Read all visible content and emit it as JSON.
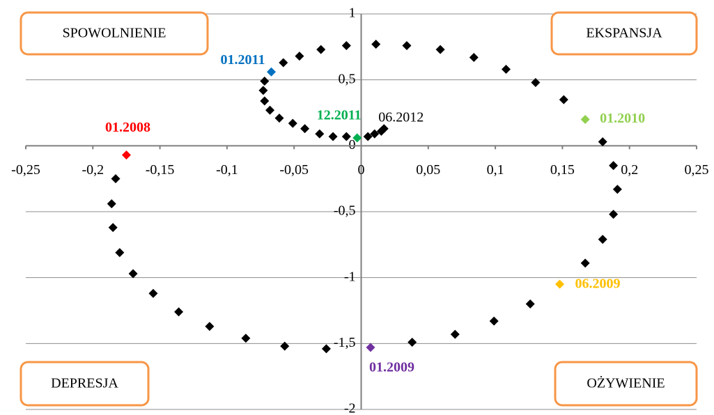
{
  "chart_data": {
    "type": "scatter",
    "xlim": [
      -0.25,
      0.25
    ],
    "xticks": [
      {
        "value": -0.25,
        "label": "-0,25"
      },
      {
        "value": -0.2,
        "label": "-0,2"
      },
      {
        "value": -0.15,
        "label": "-0,15"
      },
      {
        "value": -0.1,
        "label": "-0,1"
      },
      {
        "value": -0.05,
        "label": "-0,05"
      },
      0,
      {
        "value": 0.05,
        "label": "0,05"
      },
      {
        "value": 0.1,
        "label": "0,1"
      },
      {
        "value": 0.15,
        "label": "0,15"
      },
      {
        "value": 0.2,
        "label": "0,2"
      },
      {
        "value": 0.25,
        "label": "0,25"
      }
    ],
    "ylim": [
      -2,
      1
    ],
    "yticks": [
      -2,
      {
        "value": -1.5,
        "label": "-1,5"
      },
      -1,
      {
        "value": -0.5,
        "label": "-0,5"
      },
      0,
      {
        "value": 0.5,
        "label": "0,5"
      },
      1
    ],
    "grid": true,
    "quadrant_labels": [
      "SPOWOLNIENIE",
      "EKSPANSJA",
      "DEPRESJA",
      "OŻYWIENIE"
    ],
    "series": [
      {
        "color": "#000000",
        "x": [
          -0.183,
          -0.186,
          -0.185,
          -0.18,
          -0.17,
          -0.155,
          -0.136,
          -0.113,
          -0.086,
          -0.057,
          -0.026,
          0.038,
          0.07,
          0.099,
          0.126,
          0.167,
          0.18,
          0.188,
          0.191,
          0.188,
          0.18,
          0.151,
          0.13,
          0.108,
          0.084,
          0.059,
          0.034,
          0.011,
          -0.011,
          -0.03,
          -0.046,
          -0.058,
          -0.072,
          -0.073,
          -0.072,
          -0.068,
          -0.061,
          -0.051,
          -0.042,
          -0.031,
          -0.021,
          -0.011,
          0.005,
          0.01,
          0.015
        ],
        "y": [
          -0.25,
          -0.44,
          -0.62,
          -0.81,
          -0.97,
          -1.12,
          -1.26,
          -1.37,
          -1.46,
          -1.52,
          -1.54,
          -1.49,
          -1.43,
          -1.33,
          -1.2,
          -0.89,
          -0.71,
          -0.52,
          -0.33,
          -0.15,
          0.03,
          0.35,
          0.48,
          0.58,
          0.67,
          0.73,
          0.76,
          0.77,
          0.76,
          0.73,
          0.68,
          0.63,
          0.49,
          0.42,
          0.34,
          0.27,
          0.21,
          0.17,
          0.13,
          0.09,
          0.07,
          0.07,
          0.07,
          0.09,
          0.11
        ]
      },
      {
        "name": "01.2008",
        "color": "#ff0000",
        "x": [
          -0.175
        ],
        "y": [
          -0.07
        ]
      },
      {
        "name": "01.2009",
        "color": "#7030a0",
        "x": [
          0.007
        ],
        "y": [
          -1.53
        ]
      },
      {
        "name": "06.2009",
        "color": "#ffc000",
        "x": [
          0.148
        ],
        "y": [
          -1.05
        ]
      },
      {
        "name": "01.2010",
        "color": "#92d050",
        "x": [
          0.167
        ],
        "y": [
          0.2
        ]
      },
      {
        "name": "01.2011",
        "color": "#0070c0",
        "x": [
          -0.067
        ],
        "y": [
          0.56
        ]
      },
      {
        "name": "12.2011",
        "color": "#00b050",
        "x": [
          -0.003
        ],
        "y": [
          0.06
        ]
      },
      {
        "name": "06.2012",
        "color": "#000000",
        "x": [
          0.017
        ],
        "y": [
          0.13
        ]
      }
    ]
  }
}
